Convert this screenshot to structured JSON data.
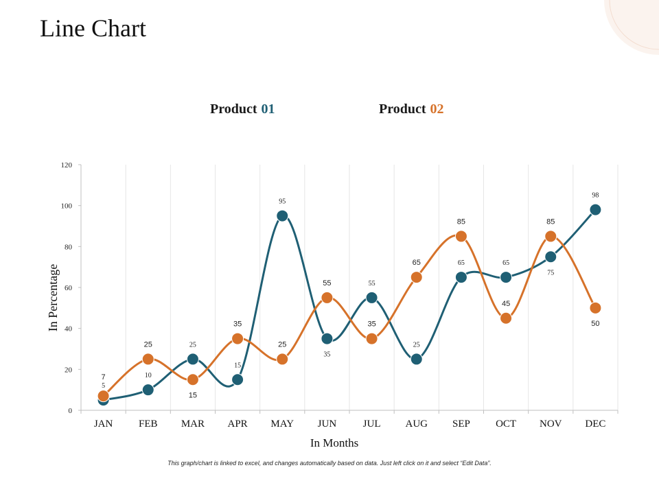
{
  "page": {
    "title": "Line Chart",
    "footnote": "This graph/chart is linked to excel, and changes automatically based on data. Just left click on it and select “Edit Data”."
  },
  "colors": {
    "product_01": "#1f5f74",
    "product_02": "#d6722a",
    "grid": "#e6e6e6",
    "axis": "#bfbfbf"
  },
  "chart_data": {
    "type": "line",
    "title": "",
    "xlabel": "In Months",
    "ylabel": "In Percentage",
    "categories": [
      "JAN",
      "FEB",
      "MAR",
      "APR",
      "MAY",
      "JUN",
      "JUL",
      "AUG",
      "SEP",
      "OCT",
      "NOV",
      "DEC"
    ],
    "ylim": [
      0,
      120
    ],
    "yticks": [
      0,
      20,
      40,
      60,
      80,
      100,
      120
    ],
    "grid": "vertical",
    "legend_position": "top",
    "series": [
      {
        "name": "Product 01",
        "label_prefix": "Product",
        "label_number": "01",
        "values": [
          5,
          10,
          25,
          15,
          95,
          35,
          55,
          25,
          65,
          65,
          75,
          98
        ]
      },
      {
        "name": "Product 02",
        "label_prefix": "Product",
        "label_number": "02",
        "values": [
          7,
          25,
          15,
          35,
          25,
          55,
          35,
          65,
          85,
          45,
          85,
          50
        ]
      }
    ]
  }
}
